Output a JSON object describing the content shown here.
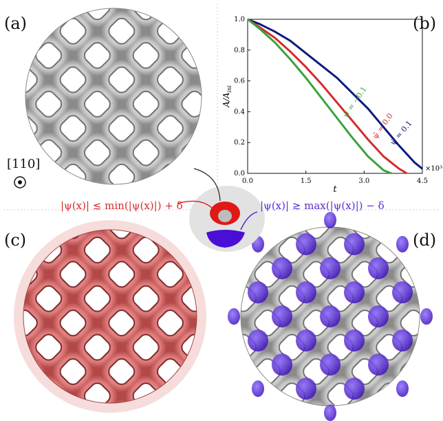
{
  "labels": {
    "a": "(a)",
    "b": "(b)",
    "c": "(c)",
    "d": "(d)"
  },
  "direction": "[110]",
  "eq_min": "|ψ(x)| ≲ min(|ψ(x)|) + δ",
  "eq_max": "|ψ(x)| ≳ max(|ψ(x)|) − δ",
  "colors": {
    "red": "#d42a2a",
    "blue": "#0a1a7a",
    "green": "#3aa23a",
    "purple": "#5b2ad1",
    "silver": "#c8c8c8"
  },
  "chart_data": {
    "type": "line",
    "xlabel": "t",
    "ylabel": "A/A_ini",
    "x_multiplier": "×10³",
    "xlim": [
      0,
      4.5
    ],
    "ylim": [
      0,
      1.0
    ],
    "xticks": [
      "0.0",
      "1.5",
      "3.0",
      "4.5"
    ],
    "yticks": [
      "0.0",
      "0.2",
      "0.4",
      "0.6",
      "0.8",
      "1.0"
    ],
    "series": [
      {
        "name": "ψ̄ = 0.1",
        "color": "#0a1a7a",
        "x": [
          0,
          0.3,
          0.7,
          1.1,
          1.5,
          1.9,
          2.3,
          2.7,
          3.1,
          3.5,
          3.9,
          4.3,
          4.5
        ],
        "y": [
          1.0,
          0.97,
          0.92,
          0.86,
          0.78,
          0.7,
          0.62,
          0.52,
          0.42,
          0.3,
          0.18,
          0.07,
          0.03
        ]
      },
      {
        "name": "ψ̄ = 0.0",
        "color": "#d42a2a",
        "x": [
          0,
          0.3,
          0.7,
          1.1,
          1.5,
          1.9,
          2.3,
          2.7,
          3.1,
          3.5,
          3.9,
          4.1
        ],
        "y": [
          1.0,
          0.95,
          0.88,
          0.79,
          0.69,
          0.58,
          0.46,
          0.34,
          0.22,
          0.11,
          0.03,
          0.0
        ]
      },
      {
        "name": "ψ̄ = −0.1",
        "color": "#3aa23a",
        "x": [
          0,
          0.3,
          0.7,
          1.1,
          1.5,
          1.9,
          2.3,
          2.7,
          3.1,
          3.5,
          3.7
        ],
        "y": [
          1.0,
          0.94,
          0.85,
          0.74,
          0.62,
          0.49,
          0.36,
          0.23,
          0.11,
          0.02,
          0.0
        ]
      }
    ]
  }
}
